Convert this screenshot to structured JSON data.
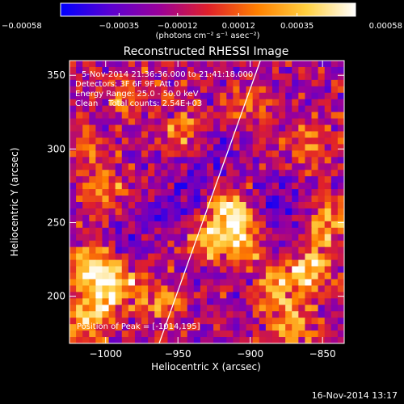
{
  "chart_data": {
    "type": "heatmap",
    "title": "Reconstructed RHESSI Image",
    "xlabel": "Heliocentric X (arcsec)",
    "ylabel": "Heliocentric Y (arcsec)",
    "xlim": [
      -1025,
      -835
    ],
    "ylim": [
      168,
      360
    ],
    "xticks": [
      -1000,
      -950,
      -900,
      -850
    ],
    "xtick_labels": [
      "−1000",
      "−950",
      "−900",
      "−850"
    ],
    "yticks": [
      200,
      250,
      300,
      350
    ],
    "ytick_labels": [
      "200",
      "250",
      "300",
      "350"
    ],
    "colorbar": {
      "unit": "(photons cm⁻² s⁻¹ asec⁻²)",
      "range": [
        -0.00058,
        0.00058
      ],
      "ticks": [
        -0.00058,
        -0.00035,
        -0.00012,
        0.00012,
        0.00035,
        0.00058
      ],
      "tick_labels": [
        "−0.00058",
        "−0.00035",
        "−0.00012",
        "0.00012",
        "0.00035",
        "0.00058"
      ],
      "colors": [
        "#0000ff",
        "#5a00d2",
        "#9a009a",
        "#e0202a",
        "#ff8000",
        "#ffd040",
        "#ffffff"
      ]
    },
    "annotations": [
      "5-Nov-2014 21:36:36.000 to 21:41:18.000",
      "Detectors: 3F 6F 9F, Att 0",
      "Energy Range: 25.0 - 50.0 keV",
      "Clean    Total counts: 2.54E+03"
    ],
    "peak_label": "Position of Peak = [-1014,195]",
    "peak": [
      -1014,
      195
    ],
    "limb_line": [
      [
        -963,
        168
      ],
      [
        -893,
        360
      ]
    ],
    "blobs": [
      {
        "x": -915,
        "y": 258,
        "a": 1.0
      },
      {
        "x": -905,
        "y": 238,
        "a": 0.9
      },
      {
        "x": -930,
        "y": 240,
        "a": 0.75
      },
      {
        "x": -1010,
        "y": 220,
        "a": 0.95
      },
      {
        "x": -1002,
        "y": 200,
        "a": 0.9
      },
      {
        "x": -985,
        "y": 212,
        "a": 0.6
      },
      {
        "x": -1015,
        "y": 182,
        "a": 0.7
      },
      {
        "x": -1000,
        "y": 270,
        "a": 0.55
      },
      {
        "x": -960,
        "y": 195,
        "a": 0.5
      },
      {
        "x": -880,
        "y": 205,
        "a": 0.75
      },
      {
        "x": -858,
        "y": 218,
        "a": 0.85
      },
      {
        "x": -848,
        "y": 250,
        "a": 0.8
      },
      {
        "x": -870,
        "y": 180,
        "a": 0.7
      },
      {
        "x": -860,
        "y": 300,
        "a": 0.55
      },
      {
        "x": -945,
        "y": 312,
        "a": 0.5
      },
      {
        "x": -985,
        "y": 335,
        "a": 0.45
      },
      {
        "x": -900,
        "y": 330,
        "a": 0.4
      },
      {
        "x": -1015,
        "y": 300,
        "a": 0.4
      }
    ],
    "dips": [
      {
        "x": -950,
        "y": 262,
        "a": 0.6
      },
      {
        "x": -880,
        "y": 262,
        "a": 0.55
      },
      {
        "x": -925,
        "y": 290,
        "a": 0.45
      },
      {
        "x": -985,
        "y": 240,
        "a": 0.4
      }
    ]
  },
  "footer": {
    "date": "16-Nov-2014 13:17"
  }
}
